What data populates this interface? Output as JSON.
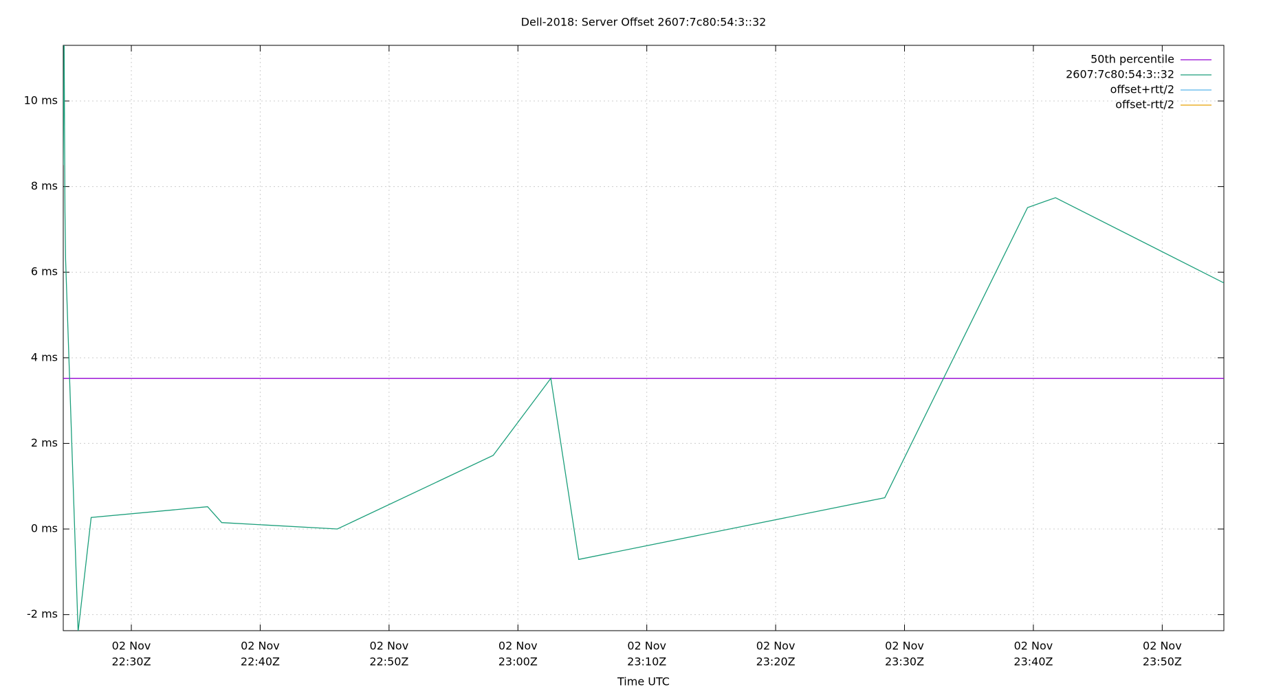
{
  "chart_data": {
    "type": "line",
    "title": "Dell-2018: Server Offset 2607:7c80:54:3::32",
    "x_label": "Time UTC",
    "xlim": [
      "22:24:43",
      "23:54:47"
    ],
    "xticks": [
      {
        "value": "22:30:00",
        "label": [
          "02 Nov",
          "22:30Z"
        ]
      },
      {
        "value": "22:40:00",
        "label": [
          "02 Nov",
          "22:40Z"
        ]
      },
      {
        "value": "22:50:00",
        "label": [
          "02 Nov",
          "22:50Z"
        ]
      },
      {
        "value": "23:00:00",
        "label": [
          "02 Nov",
          "23:00Z"
        ]
      },
      {
        "value": "23:10:00",
        "label": [
          "02 Nov",
          "23:10Z"
        ]
      },
      {
        "value": "23:20:00",
        "label": [
          "02 Nov",
          "23:20Z"
        ]
      },
      {
        "value": "23:30:00",
        "label": [
          "02 Nov",
          "23:30Z"
        ]
      },
      {
        "value": "23:40:00",
        "label": [
          "02 Nov",
          "23:40Z"
        ]
      },
      {
        "value": "23:50:00",
        "label": [
          "02 Nov",
          "23:50Z"
        ]
      }
    ],
    "ylim": [
      -2.375,
      11.3
    ],
    "yticks": [
      {
        "value": -2,
        "label": "-2 ms"
      },
      {
        "value": 0,
        "label": "0 ms"
      },
      {
        "value": 2,
        "label": "2 ms"
      },
      {
        "value": 4,
        "label": "4 ms"
      },
      {
        "value": 6,
        "label": "6 ms"
      },
      {
        "value": 8,
        "label": "8 ms"
      },
      {
        "value": 10,
        "label": "10 ms"
      }
    ],
    "grid": true,
    "legend": "top-right",
    "series": [
      {
        "name": "50th percentile",
        "color": "#9400d3",
        "x": [
          "22:24:43",
          "23:54:47"
        ],
        "values": [
          3.52,
          3.52
        ]
      },
      {
        "name": "2607:7c80:54:3::32",
        "color": "#1a9e7a",
        "x": [
          "22:24:43",
          "22:24:47",
          "22:24:51",
          "22:24:54",
          "22:25:52",
          "22:26:53",
          "22:35:55",
          "22:37:01",
          "22:45:59",
          "22:58:05",
          "23:02:33",
          "23:04:43",
          "23:28:28",
          "23:39:33",
          "23:41:43",
          "23:54:47"
        ],
        "values": [
          8.5,
          11.5,
          7.4,
          6.3,
          -2.4,
          0.27,
          0.52,
          0.15,
          0.0,
          1.72,
          3.52,
          -0.71,
          0.73,
          7.51,
          7.74,
          5.75
        ]
      },
      {
        "name": "offset+rtt/2",
        "color": "#56b4e9",
        "x": [],
        "values": []
      },
      {
        "name": "offset-rtt/2",
        "color": "#e6a000",
        "x": [],
        "values": []
      }
    ]
  }
}
